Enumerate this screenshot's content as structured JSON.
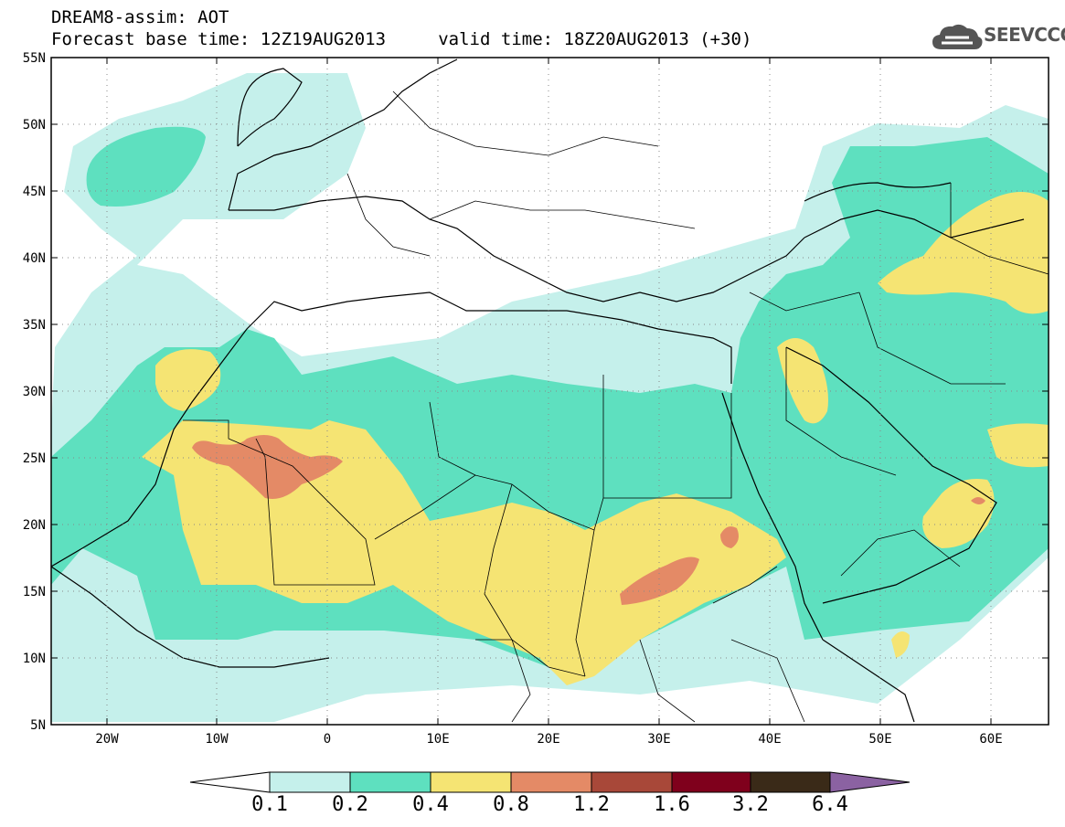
{
  "title": {
    "line1": "DREAM8-assim: AOT",
    "line2": "Forecast base time: 12Z19AUG2013     valid time: 18Z20AUG2013 (+30)"
  },
  "logo": {
    "text": "SEEVCCC",
    "icon": "cloud-logo-icon"
  },
  "map": {
    "lon_range": [
      -25,
      65
    ],
    "lat_range": [
      5,
      55
    ],
    "grid": true,
    "lat_labels": [
      "55N",
      "50N",
      "45N",
      "40N",
      "35N",
      "30N",
      "25N",
      "20N",
      "15N",
      "10N",
      "5N"
    ],
    "lon_labels": [
      "20W",
      "10W",
      "0",
      "10E",
      "20E",
      "30E",
      "40E",
      "50E",
      "60E"
    ]
  },
  "colorbar": {
    "levels": [
      "0.1",
      "0.2",
      "0.4",
      "0.8",
      "1.2",
      "1.6",
      "3.2",
      "6.4"
    ],
    "colors": [
      "#ffffff",
      "#c5f0eb",
      "#5ee0bf",
      "#f5e473",
      "#e48a66",
      "#a84839",
      "#7f001c",
      "#3a2a18",
      "#8b62a2"
    ]
  }
}
